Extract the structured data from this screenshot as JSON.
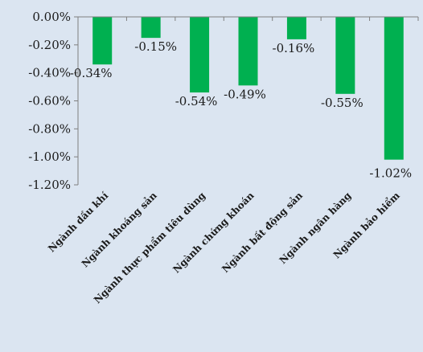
{
  "colors": {
    "background": "#dbe5f1",
    "bar": "#00b050",
    "axis": "#7f7f7f",
    "text": "#1a1a1a"
  },
  "chart_data": {
    "type": "bar",
    "categories": [
      "Ngành dầu khí",
      "Ngành khoáng sản",
      "Ngành thực phẩm tiêu dùng",
      "Ngành chứng khoán",
      "Ngành bất động sản",
      "Ngành ngân hàng",
      "Ngành bảo hiểm"
    ],
    "values": [
      -0.34,
      -0.15,
      -0.54,
      -0.49,
      -0.16,
      -0.55,
      -1.02
    ],
    "data_labels": [
      "-0.34%",
      "-0.15%",
      "-0.54%",
      "-0.49%",
      "-0.16%",
      "-0.55%",
      "-1.02%"
    ],
    "yticks": [
      0,
      -0.2,
      -0.4,
      -0.6,
      -0.8,
      -1.0,
      -1.2
    ],
    "ytick_labels": [
      "0.00%",
      "-0.20%",
      "-0.40%",
      "-0.60%",
      "-0.80%",
      "-1.00%",
      "-1.20%"
    ],
    "ylim": [
      -1.2,
      0
    ],
    "title": "",
    "xlabel": "",
    "ylabel": "",
    "grid": false,
    "legend": "none"
  }
}
